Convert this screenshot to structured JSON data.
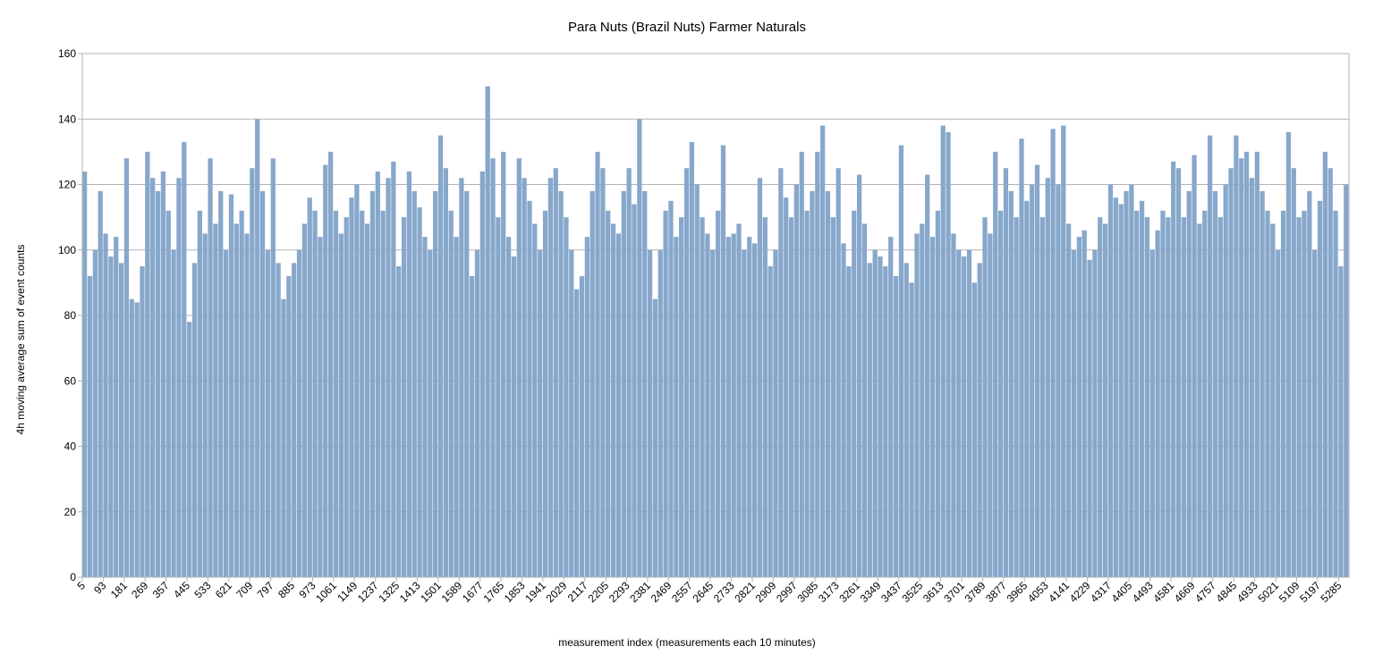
{
  "chart_data": {
    "type": "bar",
    "title": "Para Nuts (Brazil Nuts) Farmer Naturals",
    "x_label": "measurement index (measurements each 10 minutes)",
    "y_label": "4h moving average sum of event counts",
    "color": "#87a7cb",
    "grid": true,
    "xlim": [
      5,
      5329
    ],
    "ylim": [
      0,
      160
    ],
    "yticks": [
      0,
      20,
      40,
      60,
      80,
      100,
      120,
      140,
      160
    ],
    "xticks": [
      5,
      93,
      181,
      269,
      357,
      445,
      533,
      621,
      709,
      797,
      885,
      973,
      1061,
      1149,
      1237,
      1325,
      1413,
      1501,
      1589,
      1677,
      1765,
      1853,
      1941,
      2029,
      2117,
      2205,
      2293,
      2381,
      2469,
      2557,
      2645,
      2733,
      2821,
      2909,
      2997,
      3085,
      3173,
      3261,
      3349,
      3437,
      3525,
      3613,
      3701,
      3789,
      3877,
      3965,
      4053,
      4141,
      4229,
      4317,
      4405,
      4493,
      4581,
      4669,
      4757,
      4845,
      4933,
      5021,
      5109,
      5197,
      5285
    ],
    "x": [
      5,
      27,
      49,
      71,
      93,
      115,
      137,
      159,
      181,
      203,
      225,
      247,
      269,
      291,
      313,
      335,
      357,
      379,
      401,
      423,
      445,
      467,
      489,
      511,
      533,
      555,
      577,
      599,
      621,
      643,
      665,
      687,
      709,
      731,
      753,
      775,
      797,
      819,
      841,
      863,
      885,
      907,
      929,
      951,
      973,
      995,
      1017,
      1039,
      1061,
      1083,
      1105,
      1127,
      1149,
      1171,
      1193,
      1215,
      1237,
      1259,
      1281,
      1303,
      1325,
      1347,
      1369,
      1391,
      1413,
      1435,
      1457,
      1479,
      1501,
      1523,
      1545,
      1567,
      1589,
      1611,
      1633,
      1655,
      1677,
      1699,
      1721,
      1743,
      1765,
      1787,
      1809,
      1831,
      1853,
      1875,
      1897,
      1919,
      1941,
      1963,
      1985,
      2007,
      2029,
      2051,
      2073,
      2095,
      2117,
      2139,
      2161,
      2183,
      2205,
      2227,
      2249,
      2271,
      2293,
      2315,
      2337,
      2359,
      2381,
      2403,
      2425,
      2447,
      2469,
      2491,
      2513,
      2535,
      2557,
      2579,
      2601,
      2623,
      2645,
      2667,
      2689,
      2711,
      2733,
      2755,
      2777,
      2799,
      2821,
      2843,
      2865,
      2887,
      2909,
      2931,
      2953,
      2975,
      2997,
      3019,
      3041,
      3063,
      3085,
      3107,
      3129,
      3151,
      3173,
      3195,
      3217,
      3239,
      3261,
      3283,
      3305,
      3327,
      3349,
      3371,
      3393,
      3415,
      3437,
      3459,
      3481,
      3503,
      3525,
      3547,
      3569,
      3591,
      3613,
      3635,
      3657,
      3679,
      3701,
      3723,
      3745,
      3767,
      3789,
      3811,
      3833,
      3855,
      3877,
      3899,
      3921,
      3943,
      3965,
      3987,
      4009,
      4031,
      4053,
      4075,
      4097,
      4119,
      4141,
      4163,
      4185,
      4207,
      4229,
      4251,
      4273,
      4295,
      4317,
      4339,
      4361,
      4383,
      4405,
      4427,
      4449,
      4471,
      4493,
      4515,
      4537,
      4559,
      4581,
      4603,
      4625,
      4647,
      4669,
      4691,
      4713,
      4735,
      4757,
      4779,
      4801,
      4823,
      4845,
      4867,
      4889,
      4911,
      4933,
      4955,
      4977,
      4999,
      5021,
      5043,
      5065,
      5087,
      5109,
      5131,
      5153,
      5175,
      5197,
      5219,
      5241,
      5263,
      5285,
      5307
    ],
    "values": [
      124,
      92,
      100,
      118,
      105,
      98,
      104,
      96,
      128,
      85,
      84,
      95,
      130,
      122,
      118,
      124,
      112,
      100,
      122,
      133,
      78,
      96,
      112,
      105,
      128,
      108,
      118,
      100,
      117,
      108,
      112,
      105,
      125,
      140,
      118,
      100,
      128,
      96,
      85,
      92,
      96,
      100,
      108,
      116,
      112,
      104,
      126,
      130,
      112,
      105,
      110,
      116,
      120,
      112,
      108,
      118,
      124,
      112,
      122,
      127,
      95,
      110,
      124,
      118,
      113,
      104,
      100,
      118,
      135,
      125,
      112,
      104,
      122,
      118,
      92,
      100,
      124,
      150,
      128,
      110,
      130,
      104,
      98,
      128,
      122,
      115,
      108,
      100,
      112,
      122,
      125,
      118,
      110,
      100,
      88,
      92,
      104,
      118,
      130,
      125,
      112,
      108,
      105,
      118,
      125,
      114,
      140,
      118,
      100,
      85,
      100,
      112,
      115,
      104,
      110,
      125,
      133,
      120,
      110,
      105,
      100,
      112,
      132,
      104,
      105,
      108,
      100,
      104,
      102,
      122,
      110,
      95,
      100,
      125,
      116,
      110,
      120,
      130,
      112,
      118,
      130,
      138,
      118,
      110,
      125,
      102,
      95,
      112,
      123,
      108,
      96,
      100,
      98,
      95,
      104,
      92,
      132,
      96,
      90,
      105,
      108,
      123,
      104,
      112,
      138,
      136,
      105,
      100,
      98,
      100,
      90,
      96,
      110,
      105,
      130,
      112,
      125,
      118,
      110,
      134,
      115,
      120,
      126,
      110,
      122,
      137,
      120,
      138,
      108,
      100,
      104,
      106,
      97,
      100,
      110,
      108,
      120,
      116,
      114,
      118,
      120,
      112,
      115,
      110,
      100,
      106,
      112,
      110,
      127,
      125,
      110,
      118,
      129,
      108,
      112,
      135,
      118,
      110,
      120,
      125,
      135,
      128,
      130,
      122,
      130,
      118,
      112,
      108,
      100,
      112,
      136,
      125,
      110,
      112,
      118,
      100,
      115,
      130,
      125,
      112,
      95,
      120
    ]
  }
}
